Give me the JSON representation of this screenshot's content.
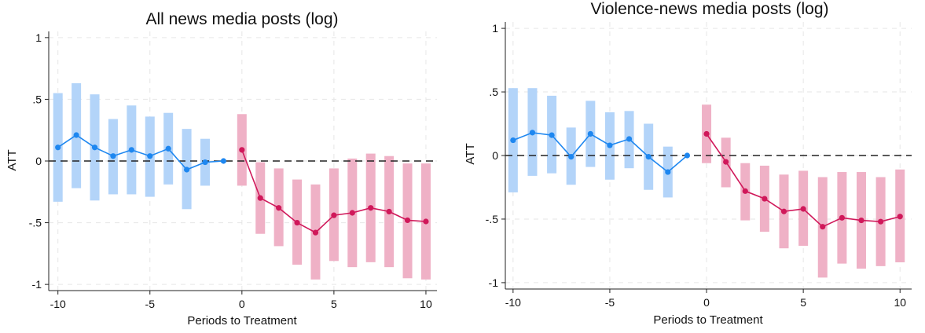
{
  "colors": {
    "pre_band": "#b3d4f9",
    "pre_line": "#1e87f0",
    "post_band": "#efb1c6",
    "post_line": "#d0185a",
    "zero_line": "#222222"
  },
  "chart_data": [
    {
      "type": "line",
      "title": "All news media posts (log)",
      "xlabel": "Periods to Treatment",
      "ylabel": "ATT",
      "xlim": [
        -10.5,
        10.6
      ],
      "ylim": [
        -1.05,
        1.05
      ],
      "xticks": [
        -10,
        -5,
        0,
        5,
        10
      ],
      "xtick_labels": [
        "-10",
        "-5",
        "0",
        "5",
        "10"
      ],
      "yticks": [
        1,
        0.5,
        0,
        -0.5,
        -1
      ],
      "ytick_labels": [
        "1",
        ".5",
        "0",
        "-.5",
        "-1"
      ],
      "reference_line_y": 0,
      "grid": true,
      "series": [
        {
          "periods": "pre",
          "x": [
            -10,
            -9,
            -8,
            -7,
            -6,
            -5,
            -4,
            -3,
            -2,
            -1
          ],
          "y": [
            0.11,
            0.21,
            0.11,
            0.04,
            0.09,
            0.04,
            0.1,
            -0.07,
            -0.01,
            0
          ],
          "ci_low": [
            -0.33,
            -0.22,
            -0.32,
            -0.27,
            -0.27,
            -0.29,
            -0.19,
            -0.39,
            -0.2,
            null
          ],
          "ci_high": [
            0.55,
            0.63,
            0.54,
            0.34,
            0.45,
            0.36,
            0.39,
            0.26,
            0.18,
            null
          ]
        },
        {
          "periods": "post",
          "x": [
            0,
            1,
            2,
            3,
            4,
            5,
            6,
            7,
            8,
            9,
            10
          ],
          "y": [
            0.09,
            -0.3,
            -0.38,
            -0.5,
            -0.58,
            -0.44,
            -0.42,
            -0.38,
            -0.41,
            -0.48,
            -0.49
          ],
          "ci_low": [
            -0.2,
            -0.59,
            -0.69,
            -0.84,
            -0.96,
            -0.81,
            -0.86,
            -0.82,
            -0.86,
            -0.95,
            -0.96
          ],
          "ci_high": [
            0.38,
            -0.01,
            -0.06,
            -0.15,
            -0.19,
            -0.06,
            0.02,
            0.06,
            0.04,
            -0.02,
            -0.02
          ]
        }
      ]
    },
    {
      "type": "line",
      "title": "Violence-news media posts (log)",
      "xlabel": "Periods to Treatment",
      "ylabel": "ATT",
      "xlim": [
        -10.4,
        10.6
      ],
      "ylim": [
        -1.05,
        1.05
      ],
      "xticks": [
        -10,
        -5,
        0,
        5,
        10
      ],
      "xtick_labels": [
        "-10",
        "-5",
        "0",
        "5",
        "10"
      ],
      "yticks": [
        1,
        0.5,
        0,
        -0.5,
        -1
      ],
      "ytick_labels": [
        "1",
        ".5",
        "0",
        "-.5",
        "-1"
      ],
      "reference_line_y": 0,
      "grid": true,
      "series": [
        {
          "periods": "pre",
          "x": [
            -10,
            -9,
            -8,
            -7,
            -6,
            -5,
            -4,
            -3,
            -2,
            -1
          ],
          "y": [
            0.12,
            0.18,
            0.16,
            -0.01,
            0.17,
            0.08,
            0.13,
            -0.01,
            -0.13,
            0
          ],
          "ci_low": [
            -0.29,
            -0.16,
            -0.14,
            -0.23,
            -0.09,
            -0.19,
            -0.1,
            -0.27,
            -0.33,
            null
          ],
          "ci_high": [
            0.53,
            0.53,
            0.47,
            0.22,
            0.43,
            0.34,
            0.35,
            0.25,
            0.07,
            null
          ]
        },
        {
          "periods": "post",
          "x": [
            0,
            1,
            2,
            3,
            4,
            5,
            6,
            7,
            8,
            9,
            10
          ],
          "y": [
            0.17,
            -0.05,
            -0.28,
            -0.34,
            -0.44,
            -0.42,
            -0.56,
            -0.49,
            -0.51,
            -0.52,
            -0.48
          ],
          "ci_low": [
            -0.06,
            -0.25,
            -0.51,
            -0.6,
            -0.73,
            -0.71,
            -0.96,
            -0.85,
            -0.89,
            -0.87,
            -0.84
          ],
          "ci_high": [
            0.4,
            0.14,
            -0.06,
            -0.08,
            -0.15,
            -0.12,
            -0.17,
            -0.13,
            -0.13,
            -0.17,
            -0.11
          ]
        }
      ]
    }
  ]
}
